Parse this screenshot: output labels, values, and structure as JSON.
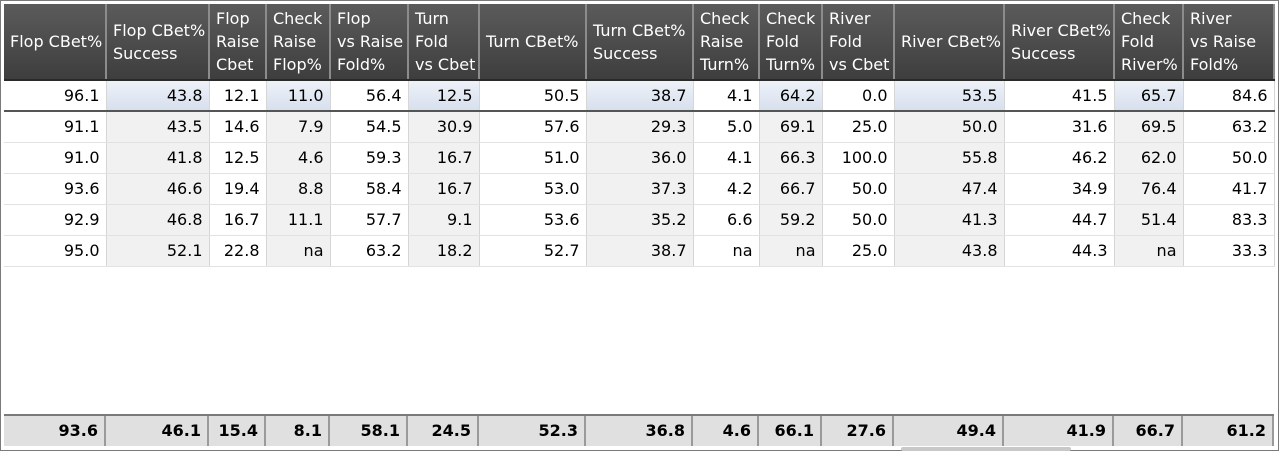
{
  "columns": [
    "Flop CBet%",
    "Flop CBet%\nSuccess",
    "Flop\nRaise\nCbet",
    "Check\nRaise\nFlop%",
    "Flop\nvs Raise\nFold%",
    "Turn\nFold\nvs Cbet",
    "Turn CBet%",
    "Turn CBet%\nSuccess",
    "Check\nRaise\nTurn%",
    "Check\nFold\nTurn%",
    "River\nFold\nvs Cbet",
    "River CBet%",
    "River CBet%\nSuccess",
    "Check\nFold\nRiver%",
    "River\nvs Raise\nFold%"
  ],
  "rows": [
    [
      "96.1",
      "43.8",
      "12.1",
      "11.0",
      "56.4",
      "12.5",
      "50.5",
      "38.7",
      "4.1",
      "64.2",
      "0.0",
      "53.5",
      "41.5",
      "65.7",
      "84.6"
    ],
    [
      "91.1",
      "43.5",
      "14.6",
      "7.9",
      "54.5",
      "30.9",
      "57.6",
      "29.3",
      "5.0",
      "69.1",
      "25.0",
      "50.0",
      "31.6",
      "69.5",
      "63.2"
    ],
    [
      "91.0",
      "41.8",
      "12.5",
      "4.6",
      "59.3",
      "16.7",
      "51.0",
      "36.0",
      "4.1",
      "66.3",
      "100.0",
      "55.8",
      "46.2",
      "62.0",
      "50.0"
    ],
    [
      "93.6",
      "46.6",
      "19.4",
      "8.8",
      "58.4",
      "16.7",
      "53.0",
      "37.3",
      "4.2",
      "66.7",
      "50.0",
      "47.4",
      "34.9",
      "76.4",
      "41.7"
    ],
    [
      "92.9",
      "46.8",
      "16.7",
      "11.1",
      "57.7",
      "9.1",
      "53.6",
      "35.2",
      "6.6",
      "59.2",
      "50.0",
      "41.3",
      "44.7",
      "51.4",
      "83.3"
    ],
    [
      "95.0",
      "52.1",
      "22.8",
      "na",
      "63.2",
      "18.2",
      "52.7",
      "38.7",
      "na",
      "na",
      "25.0",
      "43.8",
      "44.3",
      "na",
      "33.3"
    ]
  ],
  "totals": [
    "93.6",
    "46.1",
    "15.4",
    "8.1",
    "58.1",
    "24.5",
    "52.3",
    "36.8",
    "4.6",
    "66.1",
    "27.6",
    "49.4",
    "41.9",
    "66.7",
    "61.2"
  ],
  "selected_row": 0
}
